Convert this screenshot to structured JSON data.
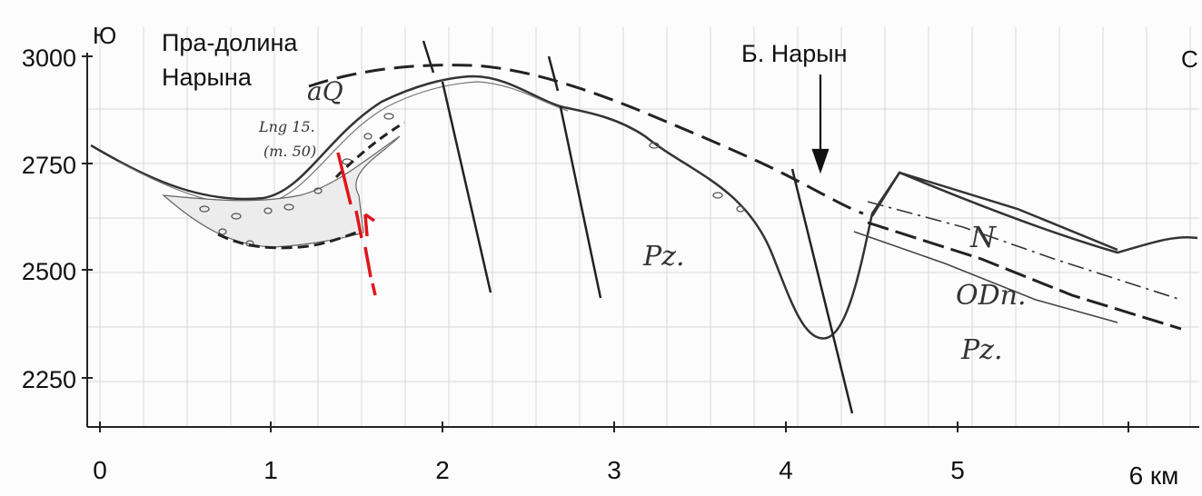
{
  "diagram": {
    "orientation_left": "Ю",
    "orientation_right": "С",
    "title_line1": "Пра-долина",
    "title_line2": "Нарына",
    "river_label": "Б. Нарын",
    "y_ticks": [
      "3000",
      "2750",
      "2500",
      "2250"
    ],
    "x_ticks": [
      "0",
      "1",
      "2",
      "3",
      "4",
      "5",
      "6 км"
    ],
    "annotations": {
      "aq": "aQ",
      "sample1": "Lng 15.",
      "sample2": "(т. 50)",
      "pz1": "Pz.",
      "pz2": "Pz.",
      "n": "N",
      "odn": "ODn."
    },
    "colors": {
      "ink": "#222222",
      "pencil": "#555555",
      "grid": "#d6d6d6",
      "fault_red": "#e0151b"
    }
  }
}
